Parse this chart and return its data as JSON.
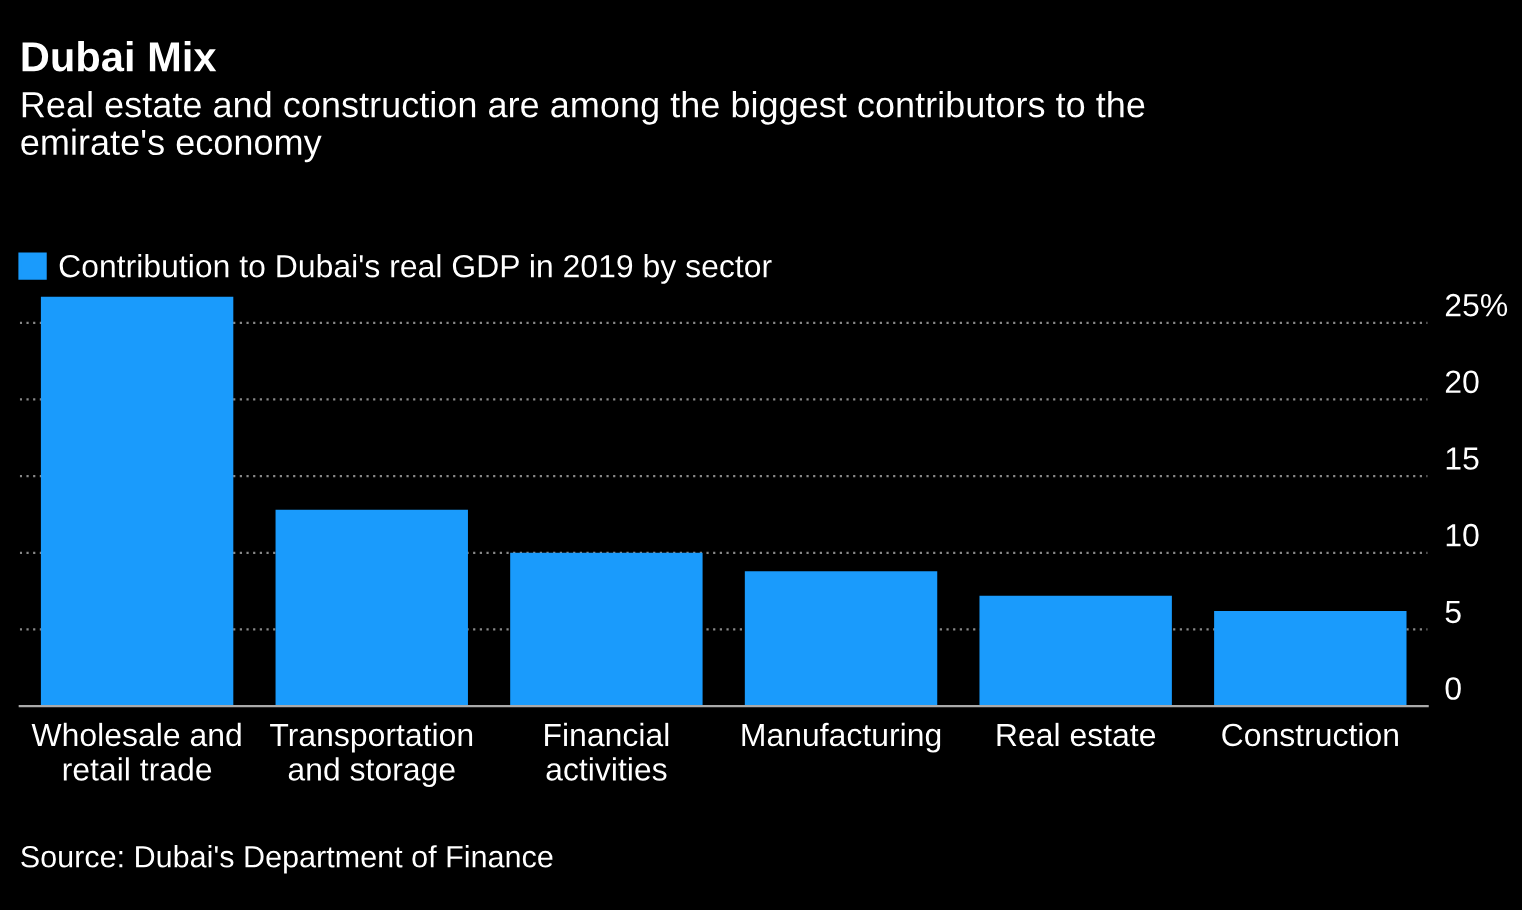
{
  "chart_data": {
    "type": "bar",
    "title": "Dubai Mix",
    "subtitle": "Real estate and construction are among the biggest contributors to the\nemirate's economy",
    "categories": [
      "Wholesale and\nretail trade",
      "Transportation\nand storage",
      "Financial\nactivities",
      "Manufacturing",
      "Real estate",
      "Construction"
    ],
    "series": [
      {
        "name": "Contribution to Dubai's real GDP in 2019 by sector",
        "color": "#1a9bfc",
        "values": [
          26.7,
          12.8,
          10.0,
          8.8,
          7.2,
          6.2
        ]
      }
    ],
    "ylim": [
      0,
      27
    ],
    "yticks": [
      0,
      5,
      10,
      15,
      20,
      {
        "value": 25,
        "label": "25%"
      }
    ],
    "grid": "y",
    "legend": "top left",
    "annotations": [
      "Source: Dubai's Department of Finance"
    ]
  }
}
